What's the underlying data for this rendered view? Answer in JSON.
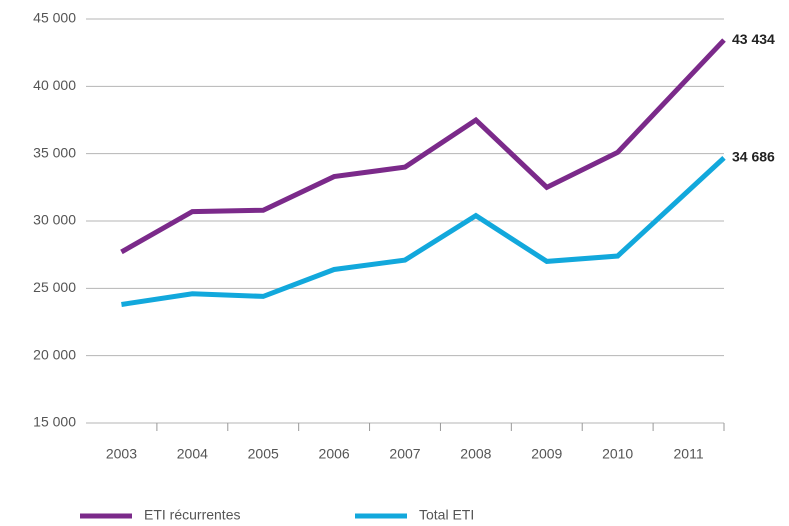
{
  "chart_data": {
    "type": "line",
    "categories": [
      "2003",
      "2004",
      "2005",
      "2006",
      "2007",
      "2008",
      "2009",
      "2010",
      "2011"
    ],
    "series": [
      {
        "name": "ETI récurrentes",
        "color": "#7b2a8a",
        "values": [
          27700,
          30700,
          30800,
          33300,
          34000,
          37500,
          32500,
          35100,
          43434
        ],
        "value_labels": [
          null,
          null,
          null,
          null,
          null,
          null,
          null,
          null,
          "43 434"
        ]
      },
      {
        "name": "Total ETI",
        "color": "#12a8dc",
        "values": [
          23800,
          24600,
          24400,
          26400,
          27100,
          30400,
          27000,
          27400,
          34686
        ],
        "value_labels": [
          null,
          null,
          null,
          null,
          null,
          null,
          null,
          null,
          "34 686"
        ]
      }
    ],
    "ylim": [
      15000,
      45000
    ],
    "yticks": [
      {
        "value": 15000,
        "label": "15 000"
      },
      {
        "value": 20000,
        "label": "20 000"
      },
      {
        "value": 25000,
        "label": "25 000"
      },
      {
        "value": 30000,
        "label": "30 000"
      },
      {
        "value": 35000,
        "label": "35 000"
      },
      {
        "value": 40000,
        "label": "40 000"
      },
      {
        "value": 45000,
        "label": "45 000"
      }
    ],
    "grid": true,
    "legend": "bottom"
  }
}
